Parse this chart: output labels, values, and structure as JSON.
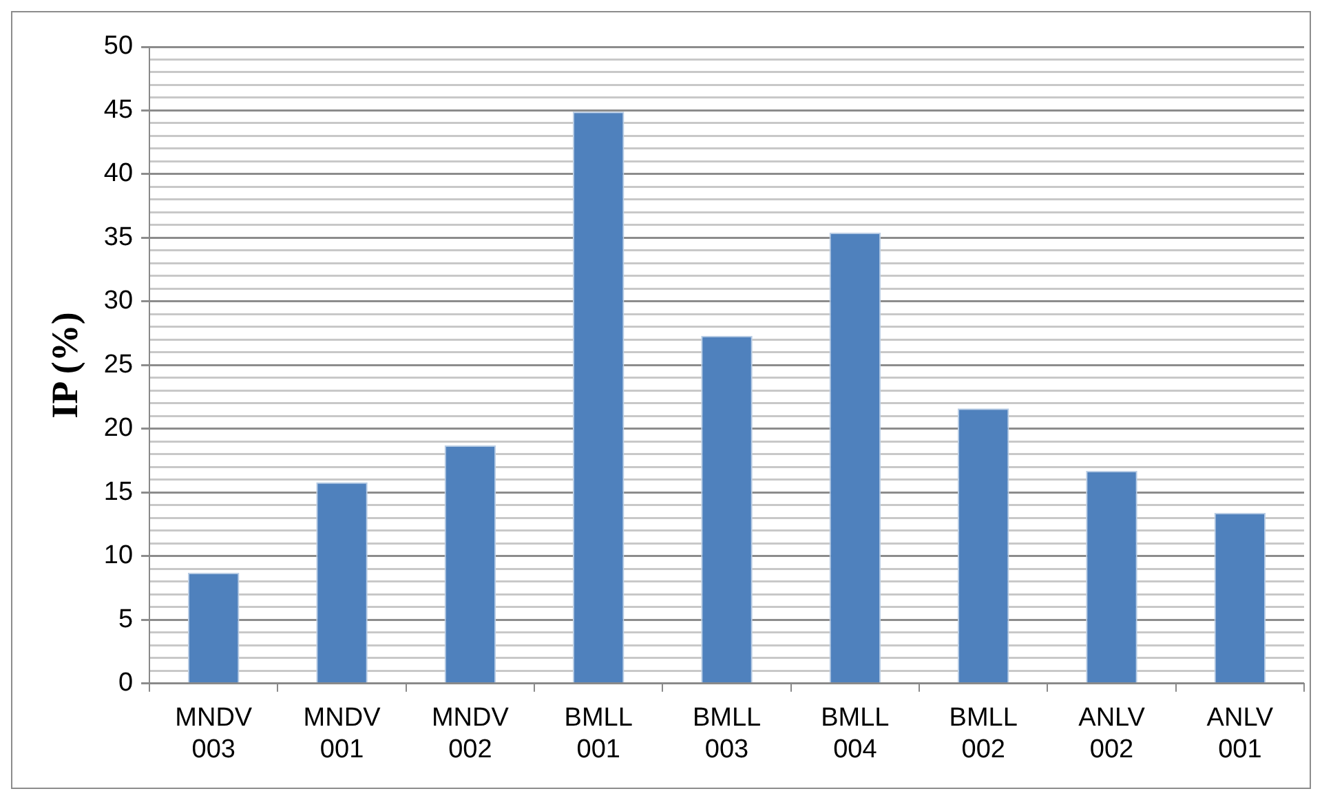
{
  "chart_data": {
    "type": "bar",
    "ylabel": "IP (%)",
    "categories": [
      "MNDV 003",
      "MNDV 001",
      "MNDV 002",
      "BMLL 001",
      "BMLL 003",
      "BMLL 004",
      "BMLL 002",
      "ANLV 002",
      "ANLV 001"
    ],
    "values": [
      8.7,
      15.8,
      18.7,
      44.9,
      27.3,
      35.4,
      21.6,
      16.7,
      13.4
    ],
    "color": "#4f81bd",
    "ylim": [
      0,
      50
    ],
    "yticks": [
      0,
      {
        "value": 1,
        "label": null
      },
      {
        "value": 2,
        "label": null
      },
      {
        "value": 3,
        "label": null
      },
      {
        "value": 4,
        "label": null
      },
      5,
      {
        "value": 6,
        "label": null
      },
      {
        "value": 7,
        "label": null
      },
      {
        "value": 8,
        "label": null
      },
      {
        "value": 9,
        "label": null
      },
      10,
      {
        "value": 11,
        "label": null
      },
      {
        "value": 12,
        "label": null
      },
      {
        "value": 13,
        "label": null
      },
      {
        "value": 14,
        "label": null
      },
      15,
      {
        "value": 16,
        "label": null
      },
      {
        "value": 17,
        "label": null
      },
      {
        "value": 18,
        "label": null
      },
      {
        "value": 19,
        "label": null
      },
      20,
      {
        "value": 21,
        "label": null
      },
      {
        "value": 22,
        "label": null
      },
      {
        "value": 23,
        "label": null
      },
      {
        "value": 24,
        "label": null
      },
      25,
      {
        "value": 26,
        "label": null
      },
      {
        "value": 27,
        "label": null
      },
      {
        "value": 28,
        "label": null
      },
      {
        "value": 29,
        "label": null
      },
      30,
      {
        "value": 31,
        "label": null
      },
      {
        "value": 32,
        "label": null
      },
      {
        "value": 33,
        "label": null
      },
      {
        "value": 34,
        "label": null
      },
      35,
      {
        "value": 36,
        "label": null
      },
      {
        "value": 37,
        "label": null
      },
      {
        "value": 38,
        "label": null
      },
      {
        "value": 39,
        "label": null
      },
      40,
      {
        "value": 41,
        "label": null
      },
      {
        "value": 42,
        "label": null
      },
      {
        "value": 43,
        "label": null
      },
      {
        "value": 44,
        "label": null
      },
      45,
      {
        "value": 46,
        "label": null
      },
      {
        "value": 47,
        "label": null
      },
      {
        "value": 48,
        "label": null
      },
      {
        "value": 49,
        "label": null
      },
      50
    ],
    "grid": true,
    "legend": false
  }
}
